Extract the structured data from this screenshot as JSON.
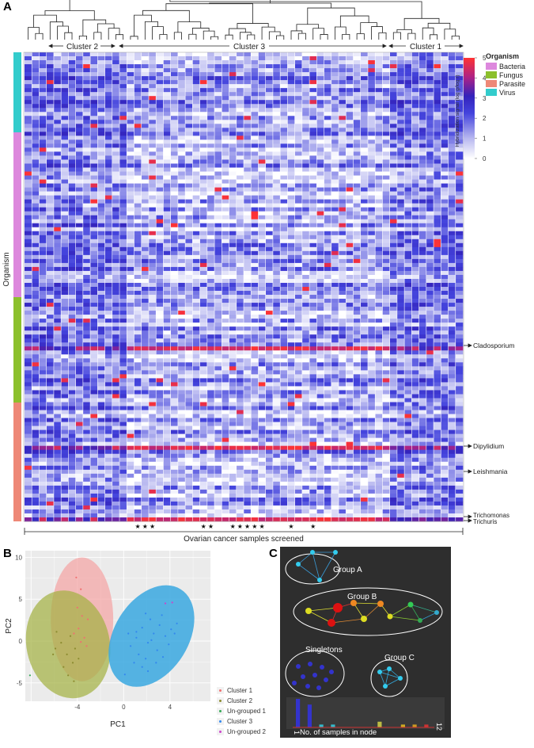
{
  "panels": {
    "a": "A",
    "b": "B",
    "c": "C"
  },
  "heatmap": {
    "clusters": [
      {
        "label": "Cluster 2"
      },
      {
        "label": "Cluster 3"
      },
      {
        "label": "Cluster 1"
      }
    ],
    "y_axis_label": "Organism",
    "x_axis_label": "Ovarian cancer samples screened",
    "row_annotations": [
      "Cladosporium",
      "Dipylidium",
      "Leishmania",
      "Trichomonas",
      "Trichuris"
    ],
    "organism_legend": {
      "title": "Organism",
      "items": [
        {
          "name": "Bacteria",
          "color": "#dd88dd"
        },
        {
          "name": "Fungus",
          "color": "#8cc02c"
        },
        {
          "name": "Parasite",
          "color": "#ee8877"
        },
        {
          "name": "Virus",
          "color": "#33cccc"
        }
      ]
    },
    "colorbar": {
      "title": "Hybridization signal (log g/log r)",
      "ticks": [
        "0",
        "1",
        "2",
        "3",
        "4",
        "5"
      ]
    },
    "star_symbol": "★"
  },
  "chart_data": [
    {
      "type": "heatmap",
      "title": "",
      "xlabel": "Ovarian cancer samples screened",
      "ylabel": "Organism",
      "value_range": [
        0,
        5
      ],
      "column_clusters": [
        "Cluster 2",
        "Cluster 3",
        "Cluster 1"
      ],
      "row_groups": [
        "Virus",
        "Bacteria",
        "Fungus",
        "Parasite"
      ],
      "labeled_rows": [
        "Cladosporium",
        "Dipylidium",
        "Leishmania",
        "Trichomonas",
        "Trichuris"
      ]
    },
    {
      "type": "scatter",
      "title": "",
      "xlabel": "PC1",
      "ylabel": "PC2",
      "xticks": [
        "-4",
        "0",
        "4"
      ],
      "yticks": [
        "-5",
        "0",
        "5",
        "10"
      ],
      "xlim": [
        -8.5,
        7.5
      ],
      "ylim": [
        -7.2,
        10.8
      ],
      "grid": true,
      "legend_position": "right",
      "series": [
        {
          "name": "Cluster 1",
          "color": "#f07070",
          "ellipse": {
            "cx": -3.6,
            "cy": 2.6,
            "rx": 2.7,
            "ry": 7.4,
            "angle": 0
          },
          "points": [
            [
              -4.1,
              7.6
            ],
            [
              -3.7,
              6.2
            ],
            [
              -4.0,
              4.0
            ],
            [
              -3.6,
              3.0
            ],
            [
              -3.1,
              2.6
            ],
            [
              -3.9,
              1.5
            ],
            [
              -3.4,
              0.4
            ],
            [
              -3.2,
              -0.6
            ],
            [
              -4.3,
              0.9
            ],
            [
              -3.7,
              -0.1
            ]
          ]
        },
        {
          "name": "Cluster 2",
          "color": "#8c8c30",
          "ellipse": {
            "cx": -4.8,
            "cy": -0.4,
            "rx": 3.6,
            "ry": 6.5,
            "angle": -12
          },
          "points": [
            [
              -5.8,
              1.1
            ],
            [
              -5.4,
              -0.2
            ],
            [
              -4.9,
              -1.6
            ],
            [
              -4.4,
              -2.6
            ],
            [
              -5.2,
              -3.1
            ],
            [
              -4.2,
              -0.9
            ],
            [
              -5.9,
              -0.9
            ],
            [
              -4.6,
              0.6
            ],
            [
              -3.9,
              -2.1
            ],
            [
              -6.1,
              -1.6
            ],
            [
              -4.8,
              -4.1
            ],
            [
              -4.3,
              -4.8
            ]
          ]
        },
        {
          "name": "Un-grouped 1",
          "color": "#33aa55",
          "points": [
            [
              -8.1,
              -4.1
            ]
          ]
        },
        {
          "name": "Cluster 3",
          "color": "#3388ee",
          "ellipse": {
            "cx": 2.4,
            "cy": 0.6,
            "rx": 3.2,
            "ry": 6.6,
            "angle": 32
          },
          "points": [
            [
              0.6,
              -0.6
            ],
            [
              1.1,
              0.4
            ],
            [
              1.6,
              1.6
            ],
            [
              2.1,
              -0.2
            ],
            [
              2.6,
              0.9
            ],
            [
              3.1,
              1.9
            ],
            [
              2.9,
              -1.1
            ],
            [
              1.9,
              -2.1
            ],
            [
              3.6,
              0.6
            ],
            [
              4.1,
              1.4
            ],
            [
              1.3,
              -1.6
            ],
            [
              2.3,
              2.6
            ],
            [
              3.3,
              3.1
            ],
            [
              0.9,
              -2.6
            ],
            [
              1.6,
              -3.1
            ],
            [
              4.6,
              2.1
            ],
            [
              2.8,
              -2.6
            ],
            [
              3.9,
              -0.4
            ],
            [
              1.1,
              1.1
            ],
            [
              2.4,
              0.1
            ],
            [
              0.4,
              0.9
            ],
            [
              3.4,
              -1.9
            ],
            [
              0.1,
              -4.0
            ],
            [
              1.9,
              3.3
            ],
            [
              4.4,
              0.9
            ],
            [
              2.1,
              -3.6
            ]
          ]
        },
        {
          "name": "Un-grouped 2",
          "color": "#cc44cc",
          "points": [
            [
              3.6,
              4.5
            ],
            [
              4.2,
              4.6
            ]
          ]
        }
      ]
    },
    {
      "type": "bar",
      "title": "",
      "xlabel": "No. of samples in node",
      "x_range_labels": [
        "1",
        "12"
      ],
      "categories": [
        "1",
        "2",
        "3",
        "4",
        "5",
        "6",
        "7",
        "8",
        "9",
        "10",
        "11",
        "12"
      ],
      "values": [
        10,
        8,
        1,
        1,
        0,
        0,
        0,
        2,
        0,
        1,
        1,
        1
      ],
      "colors": [
        "#3333cc",
        "#3333cc",
        "#33bbcc",
        "#33bbcc",
        "#888888",
        "#888888",
        "#888888",
        "#bbbb44",
        "#888888",
        "#ccaa22",
        "#cc9922",
        "#cc3333"
      ]
    }
  ],
  "network": {
    "groups": [
      {
        "label": "Group A"
      },
      {
        "label": "Group B"
      },
      {
        "label": "Singletons"
      },
      {
        "label": "Group C"
      }
    ]
  }
}
